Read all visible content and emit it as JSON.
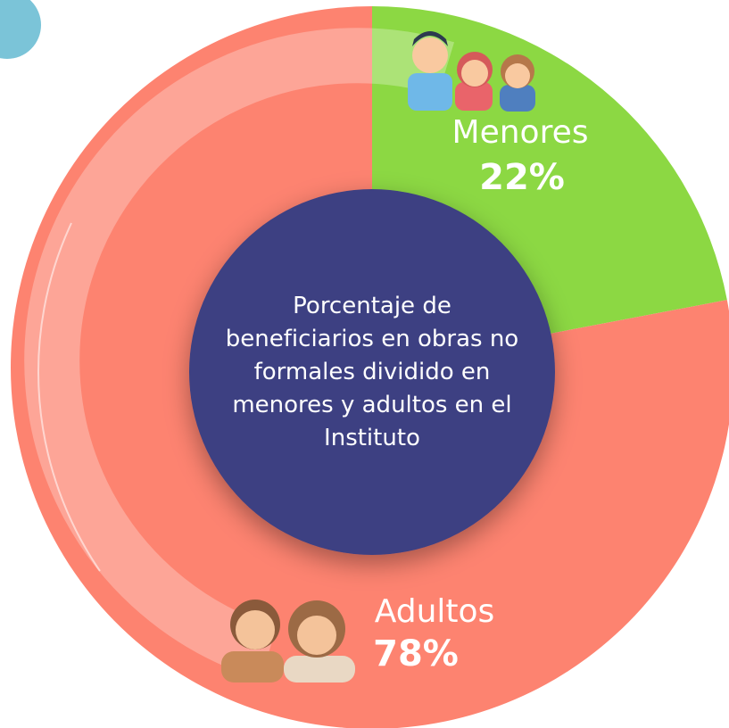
{
  "chart_data": {
    "type": "pie",
    "title": "Porcentaje de beneficiarios en obras no formales dividido en menores y adultos en el Instituto",
    "categories": [
      "Menores",
      "Adultos"
    ],
    "values": [
      22,
      78
    ],
    "value_labels": [
      "22%",
      "78%"
    ],
    "colors": [
      "#8cd843",
      "#fd8370"
    ],
    "center_color": "#3e3f82"
  }
}
